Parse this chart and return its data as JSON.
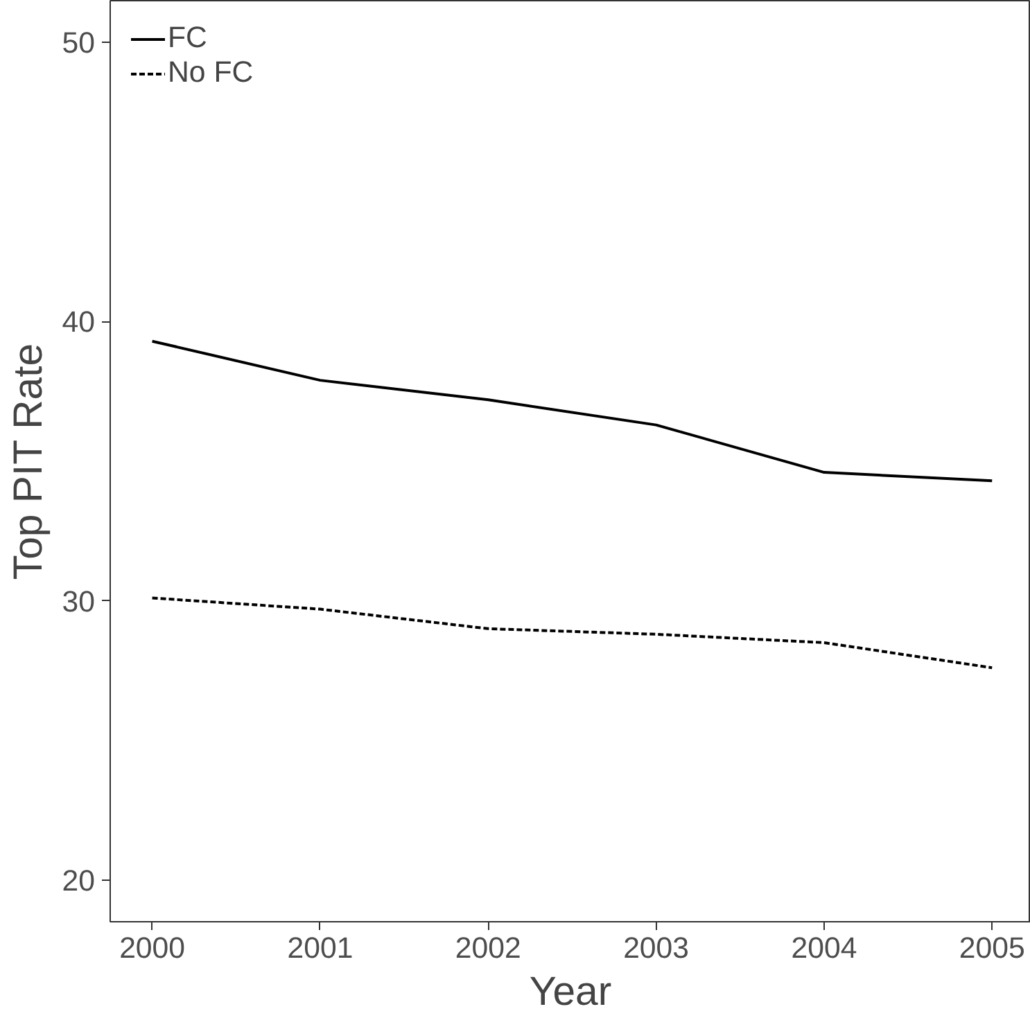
{
  "chart_data": {
    "type": "line",
    "xlabel": "Year",
    "ylabel": "Top PIT Rate",
    "x": [
      2000,
      2001,
      2002,
      2003,
      2004,
      2005
    ],
    "series": [
      {
        "name": "FC",
        "color": "#000000",
        "line_style": "solid",
        "values": [
          39.3,
          37.9,
          37.2,
          36.3,
          34.6,
          34.3
        ]
      },
      {
        "name": "No FC",
        "color": "#000000",
        "line_style": "dashed",
        "values": [
          30.1,
          29.7,
          29.0,
          28.8,
          28.5,
          27.6
        ]
      }
    ],
    "xlim": [
      1999.75,
      2005.23
    ],
    "ylim": [
      18.5,
      51.5
    ],
    "xticks": [
      2000,
      2001,
      2002,
      2003,
      2004,
      2005
    ],
    "yticks": [
      20,
      30,
      40,
      50
    ],
    "grid": false,
    "legend": "top left",
    "marker": "none"
  }
}
